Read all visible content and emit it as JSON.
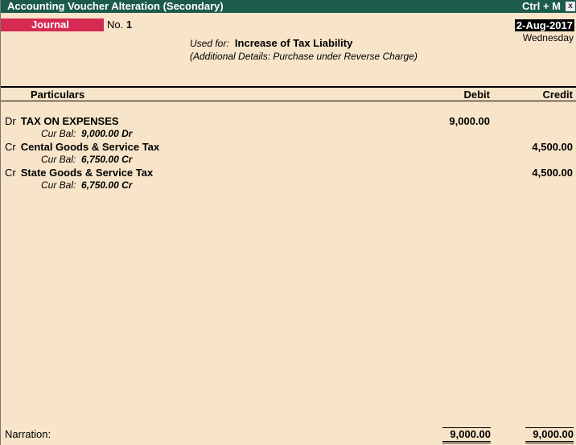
{
  "window": {
    "title": "Accounting Voucher  Alteration  (Secondary)",
    "shortcut": "Ctrl + M",
    "close_label": "x"
  },
  "voucher": {
    "type": "Journal",
    "no_label": "No.",
    "no": "1",
    "date": "2-Aug-2017",
    "day": "Wednesday",
    "used_for_label": "Used for:",
    "used_for": "Increase of Tax Liability",
    "additional": "(Additional Details: Purchase under Reverse Charge)"
  },
  "columns": {
    "particulars": "Particulars",
    "debit": "Debit",
    "credit": "Credit"
  },
  "entries": [
    {
      "dc": "Dr",
      "ledger": "TAX ON EXPENSES",
      "bal_label": "Cur Bal:",
      "bal": "9,000.00 Dr",
      "debit": "9,000.00",
      "credit": ""
    },
    {
      "dc": "Cr",
      "ledger": "Cental Goods & Service Tax",
      "bal_label": "Cur Bal:",
      "bal": "6,750.00 Cr",
      "debit": "",
      "credit": "4,500.00"
    },
    {
      "dc": "Cr",
      "ledger": "State Goods & Service Tax",
      "bal_label": "Cur Bal:",
      "bal": "6,750.00 Cr",
      "debit": "",
      "credit": "4,500.00"
    }
  ],
  "footer": {
    "narration_label": "Narration:",
    "total_debit": "9,000.00",
    "total_credit": "9,000.00"
  },
  "colors": {
    "titlebar": "#1c5a4b",
    "voucher_type": "#d52a52",
    "background": "#f7e4c9"
  }
}
